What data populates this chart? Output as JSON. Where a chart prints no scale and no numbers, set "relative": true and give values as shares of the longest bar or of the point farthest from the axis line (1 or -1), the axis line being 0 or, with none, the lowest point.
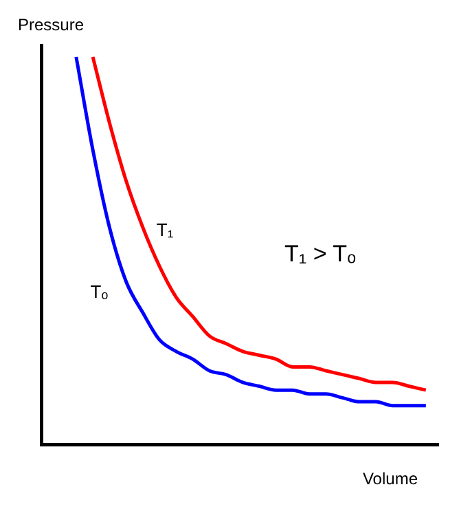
{
  "chart_data": {
    "type": "line",
    "relative": true,
    "xlabel": "Volume",
    "ylabel": "Pressure",
    "categories": [
      null,
      null,
      null,
      null,
      null,
      null,
      null,
      null,
      null,
      null,
      null,
      null,
      null,
      null,
      null,
      null,
      null,
      null,
      null,
      null,
      null,
      null
    ],
    "series": [
      {
        "name": "T₁",
        "color": "#ff0000",
        "values": [
          null,
          1,
          0.83,
          0.68,
          0.56,
          0.46,
          0.38,
          0.33,
          0.28,
          0.26,
          0.24,
          0.23,
          0.22,
          0.2,
          0.2,
          0.19,
          0.18,
          0.17,
          0.16,
          0.16,
          0.15,
          0.14
        ]
      },
      {
        "name": "Tₒ",
        "color": "#0000ff",
        "values": [
          1,
          0.76,
          0.56,
          0.42,
          0.34,
          0.27,
          0.24,
          0.22,
          0.19,
          0.18,
          0.16,
          0.15,
          0.14,
          0.14,
          0.13,
          0.13,
          0.12,
          0.11,
          0.11,
          0.1,
          0.1,
          0.1
        ]
      }
    ],
    "annotations": [
      "T₁ > Tₒ"
    ],
    "grid": false,
    "legend": false,
    "marker": "none",
    "line_style": "solid"
  }
}
